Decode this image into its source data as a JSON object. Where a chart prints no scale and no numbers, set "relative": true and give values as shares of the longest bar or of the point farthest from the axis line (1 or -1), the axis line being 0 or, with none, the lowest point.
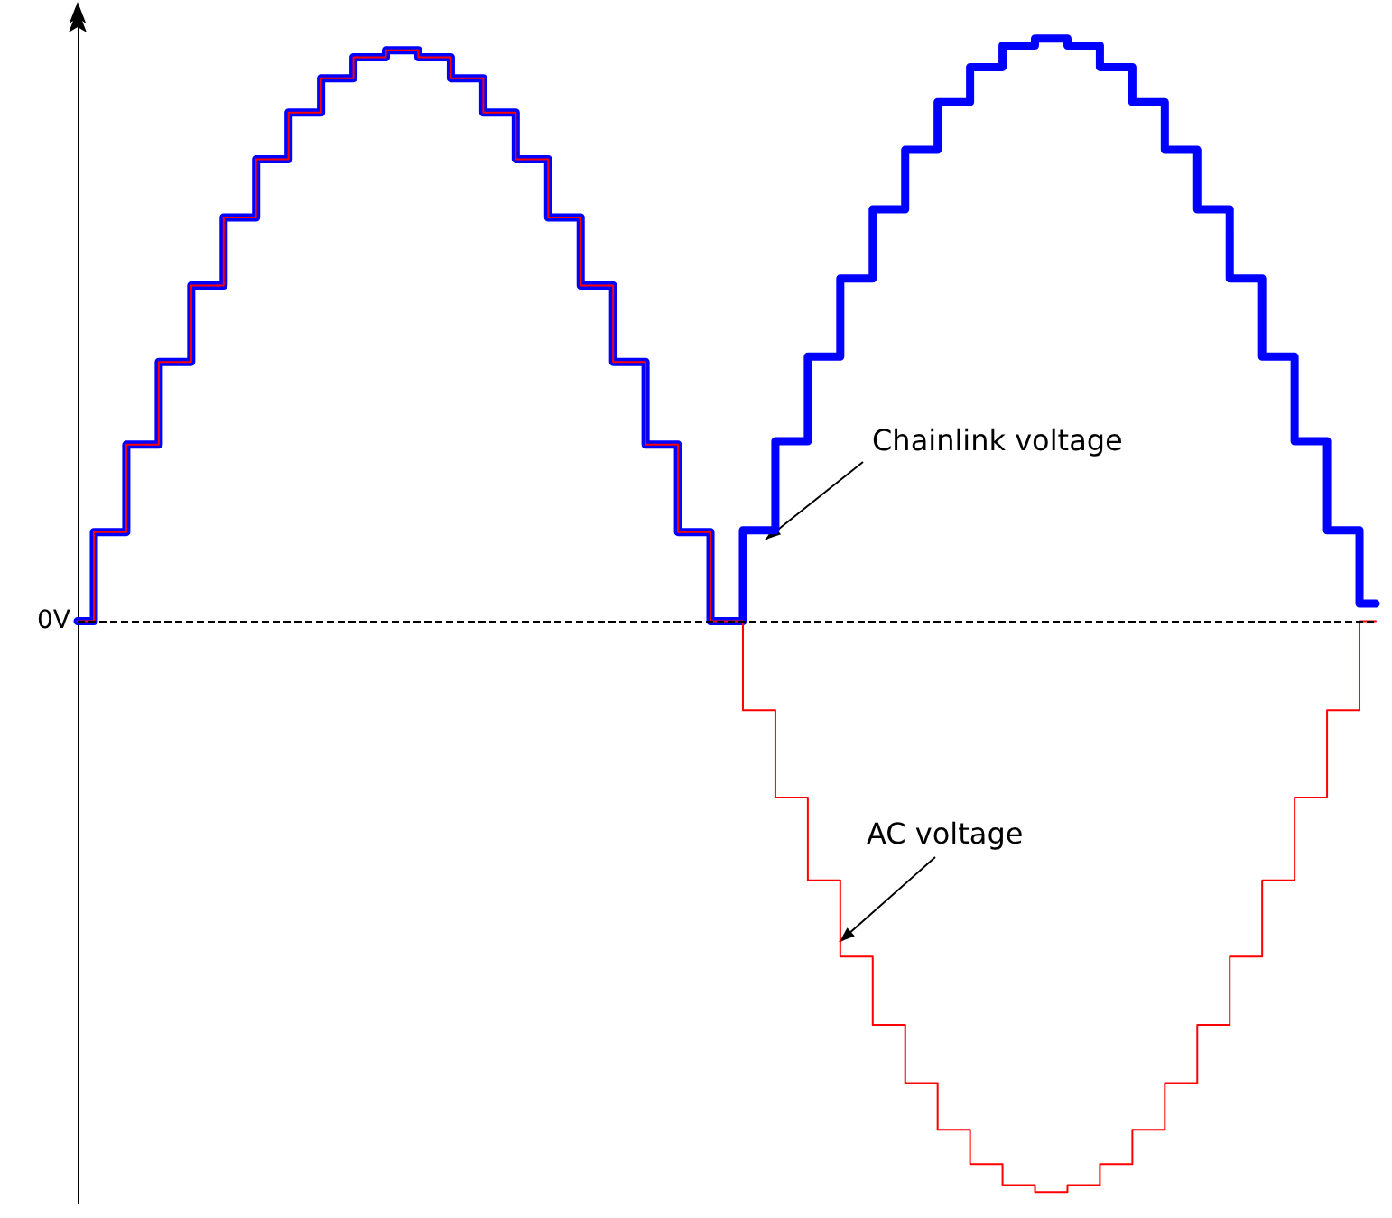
{
  "chart_data": {
    "type": "step",
    "relative": true,
    "categories": [
      null,
      null,
      null,
      null,
      null,
      null,
      null,
      null,
      null,
      null,
      null,
      null,
      null,
      null,
      null,
      null,
      null,
      null,
      null,
      null,
      null,
      null,
      null,
      null,
      null,
      null,
      null,
      null,
      null,
      null,
      null,
      null,
      null,
      null,
      null,
      null,
      null,
      null,
      null,
      null,
      null
    ],
    "series": [
      {
        "name": "Chainlink voltage",
        "color": "#0000ff",
        "values": [
          0,
          0.153,
          0.303,
          0.445,
          0.576,
          0.693,
          0.793,
          0.873,
          0.932,
          0.968,
          0.98,
          0.968,
          0.932,
          0.873,
          0.793,
          0.693,
          0.576,
          0.445,
          0.303,
          0.153,
          0,
          0.156,
          0.309,
          0.454,
          0.588,
          0.707,
          0.809,
          0.891,
          0.951,
          0.988,
          1,
          0.988,
          0.951,
          0.891,
          0.809,
          0.707,
          0.588,
          0.454,
          0.309,
          0.156,
          0.03
        ]
      },
      {
        "name": "AC voltage",
        "color": "#ff0000",
        "values": [
          0,
          0.153,
          0.303,
          0.445,
          0.576,
          0.693,
          0.793,
          0.873,
          0.932,
          0.968,
          0.98,
          0.968,
          0.932,
          0.873,
          0.793,
          0.693,
          0.576,
          0.445,
          0.303,
          0.153,
          0,
          -0.153,
          -0.303,
          -0.445,
          -0.576,
          -0.693,
          -0.793,
          -0.873,
          -0.932,
          -0.968,
          -0.98,
          -0.968,
          -0.932,
          -0.873,
          -0.793,
          -0.693,
          -0.576,
          -0.445,
          -0.303,
          -0.153,
          0
        ]
      }
    ],
    "ref_lines": [
      {
        "axis": "y",
        "value": 0,
        "label": "0V",
        "color": "#000000",
        "line_style": "dashed"
      }
    ],
    "marker": "none",
    "line_style": "solid",
    "legend": false,
    "grid": false
  }
}
